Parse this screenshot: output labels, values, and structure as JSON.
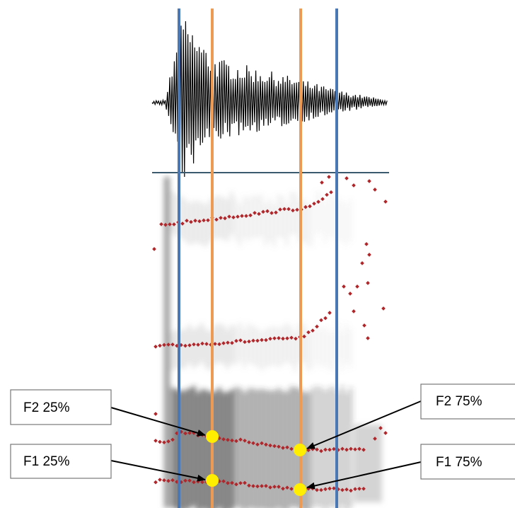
{
  "annotations": {
    "f2_start": "F2 25%",
    "f1_start": "F1 25%",
    "f2_end": "F2 75%",
    "f1_end": "F1 75%"
  }
}
